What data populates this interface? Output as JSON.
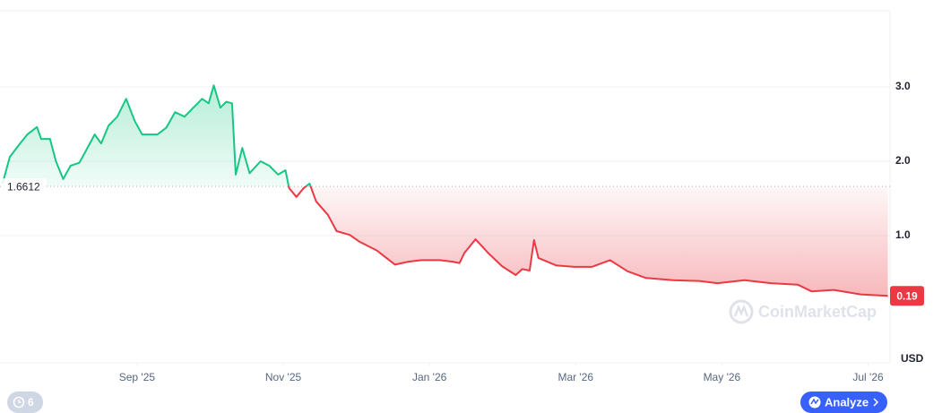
{
  "chart_data": {
    "type": "line",
    "x": [
      0.16,
      0.26,
      0.4,
      0.5,
      0.63,
      0.69,
      0.81,
      0.89,
      0.99,
      1.09,
      1.21,
      1.3,
      1.42,
      1.51,
      1.61,
      1.73,
      1.85,
      1.97,
      2.07,
      2.16,
      2.28,
      2.4,
      2.52,
      2.65,
      2.77,
      2.89,
      2.98,
      3.05,
      3.14,
      3.22,
      3.3,
      3.35,
      3.44,
      3.54,
      3.69,
      3.81,
      3.93,
      4.03,
      4.08,
      4.18,
      4.28,
      4.36,
      4.45,
      4.61,
      4.73,
      4.91,
      5.04,
      5.28,
      5.53,
      5.71,
      5.89,
      6.14,
      6.32,
      6.41,
      6.48,
      6.63,
      6.81,
      6.99,
      7.18,
      7.27,
      7.37,
      7.43,
      7.49,
      7.73,
      7.98,
      8.22,
      8.47,
      8.71,
      8.96,
      9.33,
      9.69,
      9.94,
      10.31,
      10.67,
      11.04,
      11.23,
      11.53,
      11.9,
      12.27
    ],
    "series": [
      {
        "name": "USD",
        "values": [
          1.7,
          2.06,
          2.24,
          2.36,
          2.46,
          2.3,
          2.3,
          2.0,
          1.76,
          1.94,
          1.98,
          2.14,
          2.36,
          2.24,
          2.48,
          2.6,
          2.84,
          2.54,
          2.36,
          2.36,
          2.36,
          2.45,
          2.66,
          2.6,
          2.72,
          2.84,
          2.78,
          3.02,
          2.72,
          2.8,
          2.78,
          1.82,
          2.18,
          1.84,
          2.0,
          1.94,
          1.82,
          1.88,
          1.64,
          1.52,
          1.64,
          1.7,
          1.46,
          1.28,
          1.06,
          1.01,
          0.92,
          0.8,
          0.61,
          0.65,
          0.67,
          0.67,
          0.65,
          0.63,
          0.77,
          0.95,
          0.76,
          0.59,
          0.47,
          0.55,
          0.53,
          0.94,
          0.7,
          0.6,
          0.58,
          0.58,
          0.67,
          0.52,
          0.43,
          0.4,
          0.39,
          0.36,
          0.4,
          0.36,
          0.34,
          0.25,
          0.27,
          0.21,
          0.19
        ]
      }
    ],
    "baseline": 1.6612,
    "color_up": "#16c784",
    "color_down": "#ea3943",
    "xlim": [
      0.15,
      12.3
    ],
    "xticks": [
      {
        "value": 2,
        "label": "Sep '25"
      },
      {
        "value": 4,
        "label": "Nov '25"
      },
      {
        "value": 6,
        "label": "Jan '26"
      },
      {
        "value": 8,
        "label": "Mar '26"
      },
      {
        "value": 10,
        "label": "May '26"
      },
      {
        "value": 12,
        "label": "Jul '26"
      }
    ],
    "ylim": [
      0,
      4
    ],
    "yticks": [
      {
        "value": 1,
        "label": "1.0"
      },
      {
        "value": 2,
        "label": "2.0"
      },
      {
        "value": 3,
        "label": "3.0"
      }
    ],
    "y_unit": "USD",
    "grid": true
  },
  "ui": {
    "watermark": "CoinMarketCap",
    "history_count": "6",
    "analyze": "Analyze"
  }
}
